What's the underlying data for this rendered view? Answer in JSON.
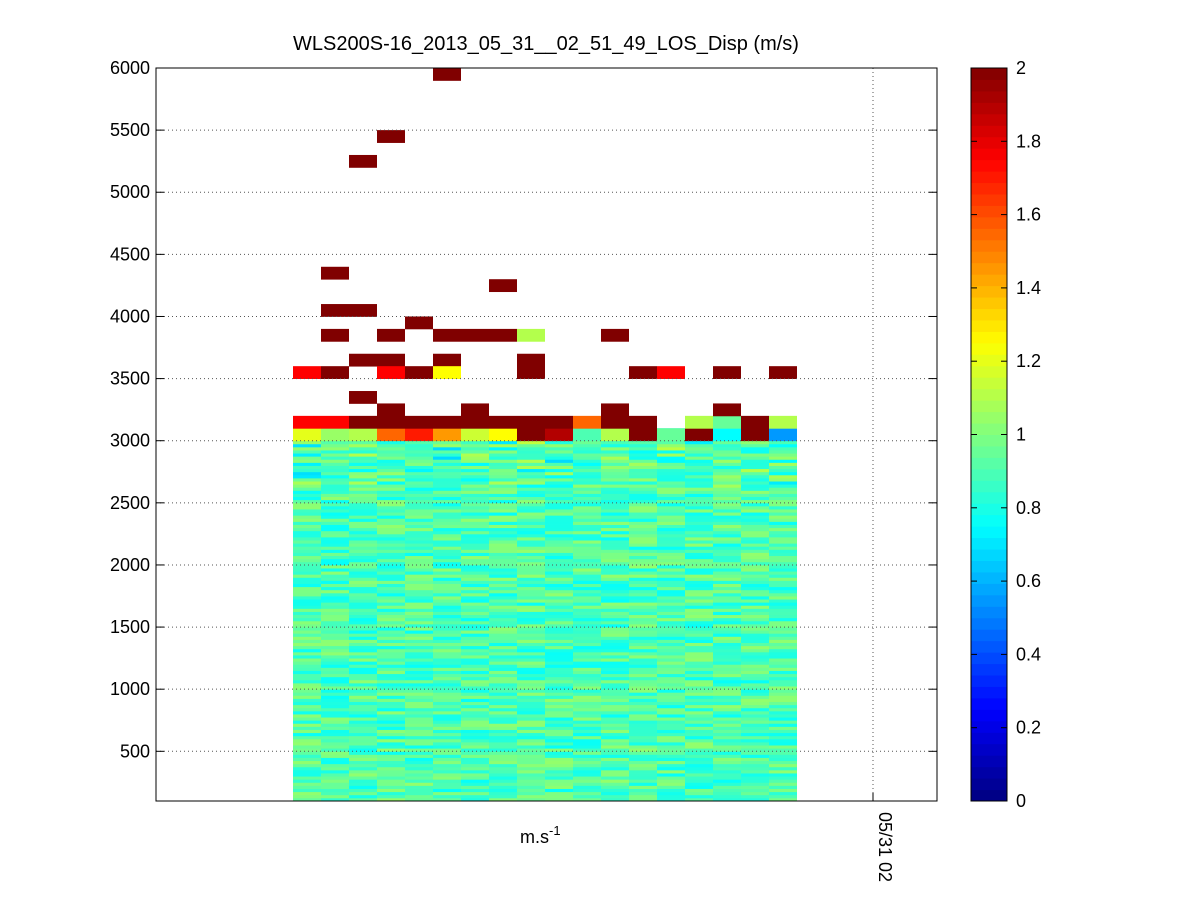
{
  "chart_data": {
    "type": "heatmap",
    "title": "WLS200S-16_2013_05_31__02_51_49_LOS_Disp (m/s)",
    "xlabel_base": "m.s",
    "xlabel_exp": "-1",
    "xtick_label": "05/31 02",
    "ylabel": "",
    "ylim": [
      100,
      6000
    ],
    "yticks": [
      500,
      1000,
      1500,
      2000,
      2500,
      3000,
      3500,
      4000,
      4500,
      5000,
      5500,
      6000
    ],
    "grid": true,
    "colormap": "jet",
    "colorbar": {
      "range": [
        0,
        2
      ],
      "ticks": [
        0,
        0.2,
        0.4,
        0.6,
        0.8,
        1,
        1.2,
        1.4,
        1.6,
        1.8,
        2
      ]
    },
    "columns": 18,
    "dense_region": {
      "top_altitude": 3100,
      "bottom_altitude": 100
    },
    "high_altitude_cells": [
      {
        "col": 5,
        "alt": 5950,
        "value": 2.0
      },
      {
        "col": 3,
        "alt": 5450,
        "value": 2.0
      },
      {
        "col": 2,
        "alt": 5250,
        "value": 2.0
      },
      {
        "col": 1,
        "alt": 4350,
        "value": 2.0
      },
      {
        "col": 7,
        "alt": 4250,
        "value": 2.0
      },
      {
        "col": 1,
        "alt": 4050,
        "value": 2.0
      },
      {
        "col": 2,
        "alt": 4050,
        "value": 2.0
      },
      {
        "col": 4,
        "alt": 3950,
        "value": 2.0
      },
      {
        "col": 1,
        "alt": 3850,
        "value": 2.0
      },
      {
        "col": 3,
        "alt": 3850,
        "value": 2.0
      },
      {
        "col": 5,
        "alt": 3850,
        "value": 2.0
      },
      {
        "col": 6,
        "alt": 3850,
        "value": 2.0
      },
      {
        "col": 7,
        "alt": 3850,
        "value": 2.0
      },
      {
        "col": 8,
        "alt": 3850,
        "value": 1.1
      },
      {
        "col": 11,
        "alt": 3850,
        "value": 2.0
      },
      {
        "col": 2,
        "alt": 3650,
        "value": 2.0
      },
      {
        "col": 3,
        "alt": 3650,
        "value": 2.0
      },
      {
        "col": 5,
        "alt": 3650,
        "value": 2.0
      },
      {
        "col": 8,
        "alt": 3650,
        "value": 2.0
      },
      {
        "col": 0,
        "alt": 3550,
        "value": 1.75
      },
      {
        "col": 1,
        "alt": 3550,
        "value": 2.0
      },
      {
        "col": 3,
        "alt": 3550,
        "value": 1.75
      },
      {
        "col": 4,
        "alt": 3550,
        "value": 2.0
      },
      {
        "col": 5,
        "alt": 3550,
        "value": 1.25
      },
      {
        "col": 8,
        "alt": 3550,
        "value": 2.0
      },
      {
        "col": 12,
        "alt": 3550,
        "value": 2.0
      },
      {
        "col": 13,
        "alt": 3550,
        "value": 1.75
      },
      {
        "col": 15,
        "alt": 3550,
        "value": 2.0
      },
      {
        "col": 17,
        "alt": 3550,
        "value": 2.0
      },
      {
        "col": 2,
        "alt": 3350,
        "value": 2.0
      },
      {
        "col": 3,
        "alt": 3250,
        "value": 2.0
      },
      {
        "col": 6,
        "alt": 3250,
        "value": 2.0
      },
      {
        "col": 11,
        "alt": 3250,
        "value": 2.0
      },
      {
        "col": 15,
        "alt": 3250,
        "value": 2.0
      }
    ],
    "band_3150": [
      1.75,
      1.75,
      2.0,
      2.0,
      2.0,
      2.0,
      2.0,
      2.0,
      2.0,
      2.0,
      1.55,
      2.0,
      2.0,
      null,
      1.1,
      0.95,
      2.0,
      1.1
    ],
    "band_3050": [
      1.2,
      1.05,
      1.1,
      1.55,
      1.7,
      1.45,
      1.15,
      1.25,
      2.0,
      1.9,
      0.9,
      1.1,
      2.0,
      0.95,
      2.0,
      0.75,
      2.0,
      0.55
    ]
  }
}
